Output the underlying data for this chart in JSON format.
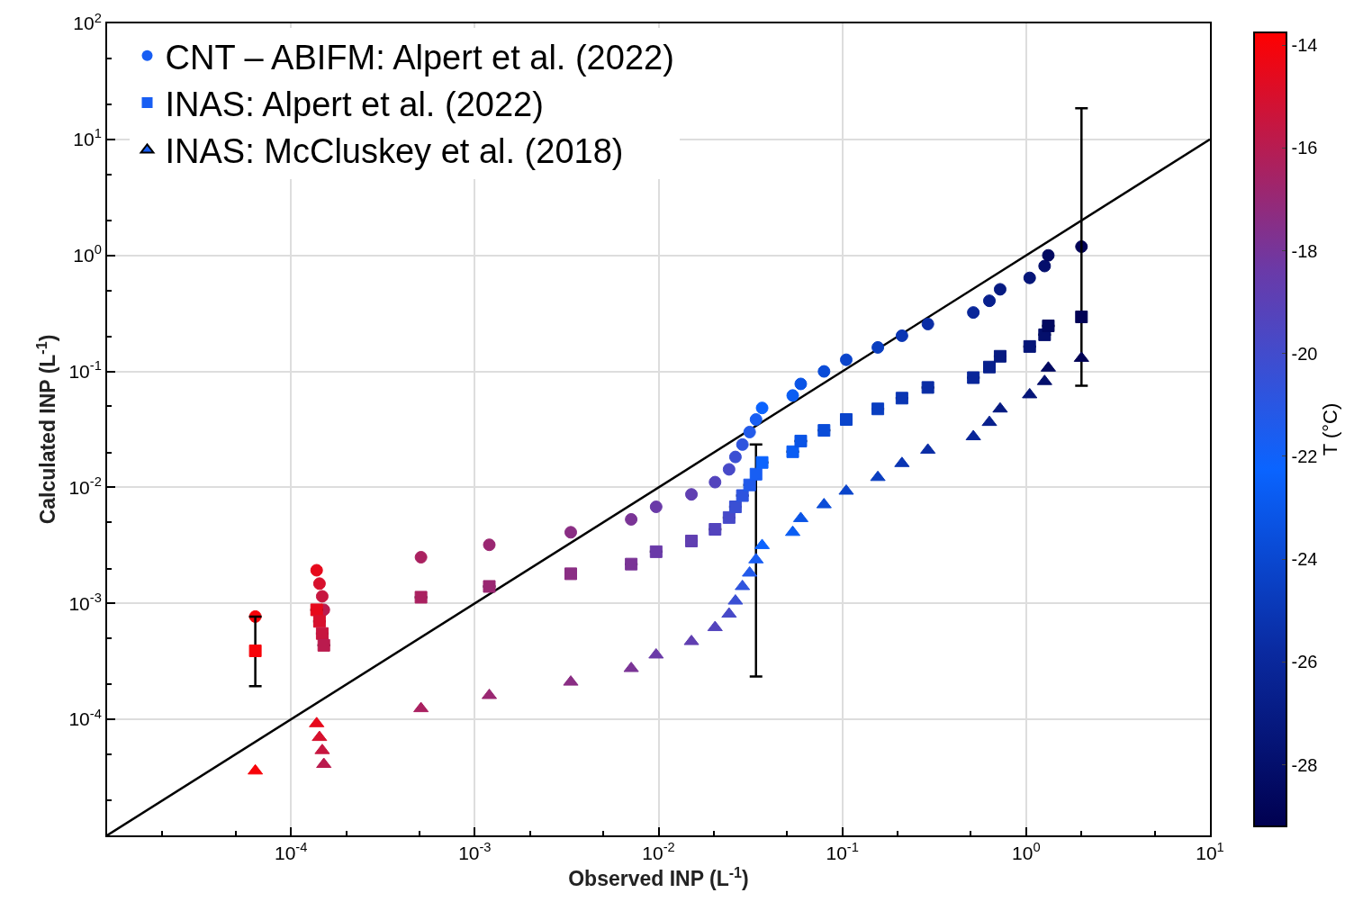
{
  "chart_data": {
    "type": "scatter",
    "xlabel": "Observed INP (L$^{-1}$)",
    "ylabel": "Calculated INP (L$^{-1}$)",
    "clabel": "T (°C)",
    "log": "xy",
    "grid": true,
    "legend": "top left",
    "xlim": [
      1e-05,
      10
    ],
    "ylim": [
      1e-05,
      100
    ],
    "xticks": [
      {
        "value": 0.0001,
        "label": "10$^{-4}$"
      },
      {
        "value": 0.001,
        "label": "10$^{-3}$"
      },
      {
        "value": 0.01,
        "label": "10$^{-2}$"
      },
      {
        "value": 0.1,
        "label": "10$^{-1}$"
      },
      {
        "value": 1,
        "label": "10$^{0}$"
      },
      {
        "value": 10,
        "label": "10$^{1}$"
      }
    ],
    "yticks": [
      {
        "value": 0.0001,
        "label": "10$^{-4}$"
      },
      {
        "value": 0.001,
        "label": "10$^{-3}$"
      },
      {
        "value": 0.01,
        "label": "10$^{-2}$"
      },
      {
        "value": 0.1,
        "label": "10$^{-1}$"
      },
      {
        "value": 1,
        "label": "10$^{0}$"
      },
      {
        "value": 10,
        "label": "10$^{1}$"
      },
      {
        "value": 100,
        "label": "10$^{2}$"
      }
    ],
    "clim": [
      -29.2,
      -13.75
    ],
    "cticks": [
      -28,
      -26,
      -24,
      -22,
      -20,
      -18,
      -16,
      -14
    ],
    "series": [
      {
        "type": "line",
        "color": "#000000",
        "line_style": "solid",
        "x": [
          1e-05,
          10
        ],
        "values": [
          1e-05,
          10
        ]
      },
      {
        "name": "CNT – ABIFM: Alpert et al. (2022)",
        "marker": "circle",
        "colors": [
          "#f70309",
          "#e7091b",
          "#d7102d",
          "#c71640",
          "#ba1b4e",
          "#aa2160",
          "#9a2772",
          "#8a2e84",
          "#7a3496",
          "#6a3aa8",
          "#603fb1",
          "#5344bd",
          "#4749c8",
          "#3a4fd3",
          "#2e54de",
          "#225aea",
          "#185ef3",
          "#0b63fe",
          "#0a5df3",
          "#0a54e6",
          "#0a4cd8",
          "#0a44cb",
          "#0a3ec0",
          "#0a35b3",
          "#0a2da5",
          "#092699",
          "#08208d",
          "#061a81",
          "#051578",
          "#040f6c",
          "#020960",
          "#010255"
        ],
        "x": [
          6.4e-05,
          0.000138,
          0.000143,
          0.000148,
          0.000151,
          0.00051,
          0.0012,
          0.00333,
          0.0071,
          0.0097,
          0.0151,
          0.0203,
          0.0242,
          0.0262,
          0.0286,
          0.0313,
          0.0339,
          0.0366,
          0.0537,
          0.0594,
          0.0795,
          0.105,
          0.156,
          0.211,
          0.292,
          0.516,
          0.631,
          0.722,
          1.045,
          1.26,
          1.32,
          2.0
        ],
        "values": [
          0.00077,
          0.00193,
          0.00148,
          0.00115,
          0.00088,
          0.0025,
          0.0032,
          0.0041,
          0.0053,
          0.0068,
          0.0087,
          0.0111,
          0.0143,
          0.0183,
          0.0234,
          0.03,
          0.0385,
          0.0484,
          0.062,
          0.078,
          0.1,
          0.126,
          0.161,
          0.203,
          0.256,
          0.322,
          0.406,
          0.51,
          0.64,
          0.81,
          1.0,
          1.19
        ],
        "cvalues": [
          -14.0,
          -14.5,
          -15.0,
          -15.5,
          -15.9,
          -16.4,
          -16.9,
          -17.4,
          -17.9,
          -18.4,
          -18.8,
          -19.3,
          -19.8,
          -20.3,
          -20.8,
          -21.3,
          -21.7,
          -22.2,
          -22.7,
          -23.2,
          -23.7,
          -24.2,
          -24.6,
          -25.1,
          -25.6,
          -26.1,
          -26.6,
          -27.1,
          -27.5,
          -28.0,
          -28.5,
          -29.0
        ]
      },
      {
        "name": "INAS: Alpert et al. (2022)",
        "marker": "square",
        "colors": [
          "#f70309",
          "#e7091b",
          "#d7102d",
          "#c71640",
          "#ba1b4e",
          "#aa2160",
          "#9a2772",
          "#8a2e84",
          "#7a3496",
          "#6a3aa8",
          "#603fb1",
          "#5344bd",
          "#4749c8",
          "#3a4fd3",
          "#2e54de",
          "#225aea",
          "#185ef3",
          "#0b63fe",
          "#0a5df3",
          "#0a54e6",
          "#0a4cd8",
          "#0a44cb",
          "#0a3ec0",
          "#0a35b3",
          "#0a2da5",
          "#092699",
          "#08208d",
          "#061a81",
          "#051578",
          "#040f6c",
          "#020960",
          "#010255"
        ],
        "errors": [
          [
            0.000193,
            0.00077
          ],
          null,
          null,
          null,
          null,
          null,
          null,
          null,
          null,
          null,
          null,
          null,
          null,
          null,
          null,
          null,
          [
            0.000234,
            0.0234
          ],
          null,
          null,
          null,
          null,
          null,
          null,
          null,
          null,
          null,
          null,
          null,
          null,
          null,
          null,
          [
            0.0753,
            18.6
          ]
        ],
        "x": [
          6.4e-05,
          0.000138,
          0.000143,
          0.000148,
          0.000151,
          0.00051,
          0.0012,
          0.00333,
          0.0071,
          0.0097,
          0.0151,
          0.0203,
          0.0242,
          0.0262,
          0.0286,
          0.0313,
          0.0339,
          0.0366,
          0.0537,
          0.0594,
          0.0795,
          0.105,
          0.156,
          0.211,
          0.292,
          0.516,
          0.631,
          0.722,
          1.045,
          1.26,
          1.32,
          2.0
        ],
        "values": [
          0.00039,
          0.00088,
          0.0007,
          0.00055,
          0.000435,
          0.00113,
          0.0014,
          0.0018,
          0.00218,
          0.00279,
          0.00345,
          0.00435,
          0.0055,
          0.0068,
          0.0085,
          0.0105,
          0.013,
          0.0164,
          0.0203,
          0.0251,
          0.031,
          0.0385,
          0.0475,
          0.0588,
          0.0727,
          0.0883,
          0.109,
          0.135,
          0.164,
          0.207,
          0.247,
          0.295
        ],
        "cvalues": [
          -14.0,
          -14.5,
          -15.0,
          -15.5,
          -15.9,
          -16.4,
          -16.9,
          -17.4,
          -17.9,
          -18.4,
          -18.8,
          -19.3,
          -19.8,
          -20.3,
          -20.8,
          -21.3,
          -21.7,
          -22.2,
          -22.7,
          -23.2,
          -23.7,
          -24.2,
          -24.6,
          -25.1,
          -25.6,
          -26.1,
          -26.6,
          -27.1,
          -27.5,
          -28.0,
          -28.5,
          -29.0
        ]
      },
      {
        "name": "INAS: McCluskey et al. (2018)",
        "marker": "triangle",
        "colors": [
          "#f70309",
          "#e7091b",
          "#d7102d",
          "#c71640",
          "#ba1b4e",
          "#aa2160",
          "#9a2772",
          "#8a2e84",
          "#7a3496",
          "#6a3aa8",
          "#603fb1",
          "#5344bd",
          "#4749c8",
          "#3a4fd3",
          "#2e54de",
          "#225aea",
          "#185ef3",
          "#0b63fe",
          "#0a5df3",
          "#0a54e6",
          "#0a4cd8",
          "#0a44cb",
          "#0a3ec0",
          "#0a35b3",
          "#0a2da5",
          "#092699",
          "#08208d",
          "#061a81",
          "#051578",
          "#040f6c",
          "#020960",
          "#010255"
        ],
        "x": [
          6.4e-05,
          0.000138,
          0.000143,
          0.000148,
          0.000151,
          0.00051,
          0.0012,
          0.00333,
          0.0071,
          0.0097,
          0.0151,
          0.0203,
          0.0242,
          0.0262,
          0.0286,
          0.0313,
          0.0339,
          0.0366,
          0.0537,
          0.0594,
          0.0795,
          0.105,
          0.156,
          0.211,
          0.292,
          0.516,
          0.631,
          0.722,
          1.045,
          1.26,
          1.32,
          2.0
        ],
        "values": [
          3.6e-05,
          9.2e-05,
          7e-05,
          5.4e-05,
          4.1e-05,
          0.000124,
          0.000161,
          0.00021,
          0.000275,
          0.00036,
          0.00047,
          0.00062,
          0.00081,
          0.00105,
          0.0014,
          0.00183,
          0.00238,
          0.00316,
          0.0041,
          0.0054,
          0.0071,
          0.0093,
          0.0122,
          0.0161,
          0.021,
          0.0274,
          0.0364,
          0.0475,
          0.063,
          0.082,
          0.107,
          0.13
        ],
        "cvalues": [
          -14.0,
          -14.5,
          -15.0,
          -15.5,
          -15.9,
          -16.4,
          -16.9,
          -17.4,
          -17.9,
          -18.4,
          -18.8,
          -19.3,
          -19.8,
          -20.3,
          -20.8,
          -21.3,
          -21.7,
          -22.2,
          -22.7,
          -23.2,
          -23.7,
          -24.2,
          -24.6,
          -25.1,
          -25.6,
          -26.1,
          -26.6,
          -27.1,
          -27.5,
          -28.0,
          -28.5,
          -29.0
        ]
      }
    ]
  }
}
